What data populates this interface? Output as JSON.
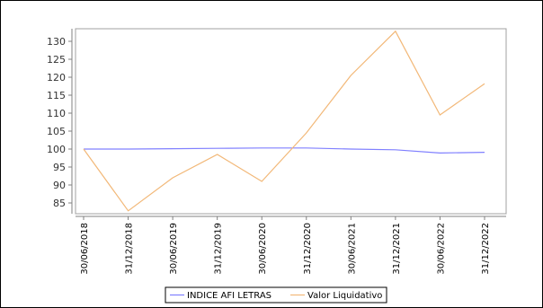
{
  "chart_data": {
    "type": "line",
    "title": "",
    "xlabel": "",
    "ylabel": "",
    "categories": [
      "30/06/2018",
      "31/12/2018",
      "30/06/2019",
      "31/12/2019",
      "30/06/2020",
      "31/12/2020",
      "30/06/2021",
      "31/12/2021",
      "30/06/2022",
      "31/12/2022"
    ],
    "yticks": [
      85,
      90,
      95,
      100,
      105,
      110,
      115,
      120,
      125,
      130
    ],
    "ylim": [
      82,
      133.5
    ],
    "grid": false,
    "legend_position": "bottom",
    "series": [
      {
        "name": "INDICE AFI LETRAS",
        "color": "#8080ff",
        "values": [
          100.0,
          100.0,
          100.1,
          100.2,
          100.3,
          100.3,
          100.0,
          99.8,
          98.9,
          99.1
        ]
      },
      {
        "name": "Valor Liquidativo",
        "color": "#f2b878",
        "values": [
          100.0,
          82.8,
          92.0,
          98.5,
          91.0,
          104.5,
          120.5,
          132.8,
          109.5,
          118.2
        ]
      }
    ]
  }
}
